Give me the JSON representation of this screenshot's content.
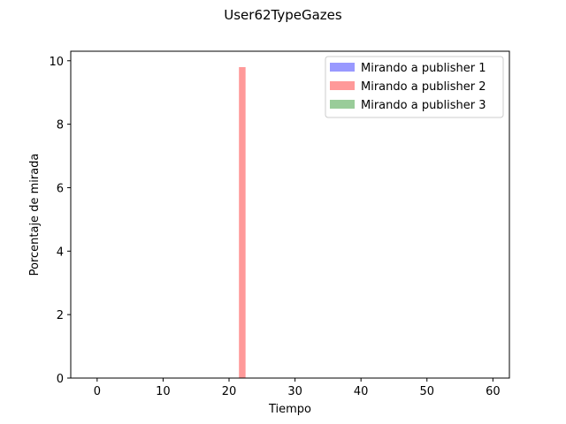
{
  "chart_data": {
    "type": "bar",
    "title": "User62TypeGazes",
    "xlabel": "Tiempo",
    "ylabel": "Porcentaje de mirada",
    "xlim": [
      -4,
      62.5
    ],
    "ylim": [
      0,
      10.3
    ],
    "xticks": [
      0,
      10,
      20,
      30,
      40,
      50,
      60
    ],
    "yticks": [
      0,
      2,
      4,
      6,
      8,
      10
    ],
    "bar_width": 1,
    "grid": false,
    "legend_position": "top-right",
    "series": [
      {
        "name": "Mirando a publisher 1",
        "color": "#9999ff",
        "points": []
      },
      {
        "name": "Mirando a publisher 2",
        "color": "#ff9999",
        "points": [
          {
            "x": 22,
            "y": 9.8
          }
        ]
      },
      {
        "name": "Mirando a publisher 3",
        "color": "#99cc99",
        "points": []
      }
    ]
  }
}
